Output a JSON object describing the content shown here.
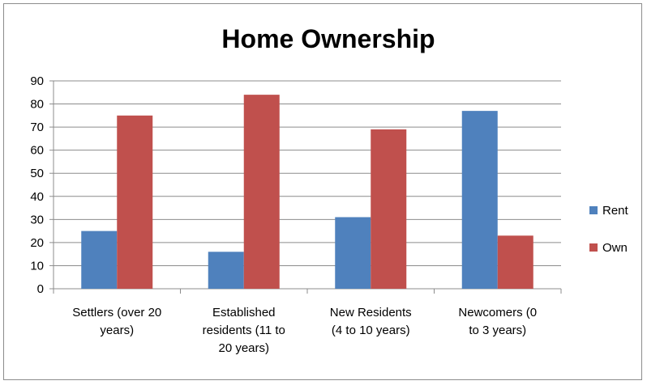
{
  "chart_data": {
    "type": "bar",
    "title": "Home Ownership",
    "categories": [
      [
        "Settlers (over 20",
        "years)"
      ],
      [
        "Established",
        "residents  (11 to",
        "20 years)"
      ],
      [
        "New Residents",
        "(4 to 10 years)"
      ],
      [
        "Newcomers (0",
        "to 3 years)"
      ]
    ],
    "series": [
      {
        "name": "Rent",
        "values": [
          25,
          16,
          31,
          77
        ],
        "color": "#4f81bd"
      },
      {
        "name": "Own",
        "values": [
          75,
          84,
          69,
          23
        ],
        "color": "#c0504d"
      }
    ],
    "yticks": [
      "0",
      "10",
      "20",
      "30",
      "40",
      "50",
      "60",
      "70",
      "80",
      "90"
    ],
    "ylim": [
      0,
      90
    ],
    "xlabel": "",
    "ylabel": "",
    "grid": true,
    "legend_position": "right"
  }
}
